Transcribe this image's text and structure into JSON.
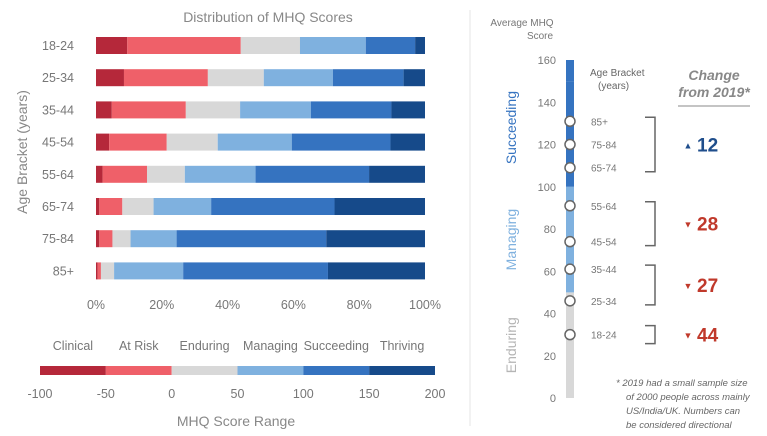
{
  "left_chart": {
    "title": "Distribution of MHQ Scores",
    "ylabel": "Age Bracket (years)",
    "x_ticks": [
      "0%",
      "20%",
      "40%",
      "60%",
      "80%",
      "100%"
    ]
  },
  "legend": {
    "labels": [
      "Clinical",
      "At Risk",
      "Enduring",
      "Managing",
      "Succeeding",
      "Thriving"
    ],
    "ticks": [
      "-100",
      "-50",
      "0",
      "50",
      "100",
      "150",
      "200"
    ],
    "xlabel": "MHQ Score Range"
  },
  "right_chart": {
    "title_line1": "Average MHQ",
    "title_line2": "Score",
    "y_ticks": [
      "160",
      "140",
      "120",
      "100",
      "80",
      "60",
      "40",
      "20",
      "0"
    ],
    "bracket_header_line1": "Age Bracket",
    "bracket_header_line2": "(years)",
    "change_header_line1": "Change",
    "change_header_line2": "from 2019*",
    "band_labels": [
      "Succeeding",
      "Managing",
      "Enduring"
    ],
    "changes": [
      {
        "arrow": "▲",
        "value": "12"
      },
      {
        "arrow": "▼",
        "value": "28"
      },
      {
        "arrow": "▼",
        "value": "27"
      },
      {
        "arrow": "▼",
        "value": "44"
      }
    ],
    "footnote_lines": [
      "* 2019 had a small sample size",
      "of 2000 people across mainly",
      "US/India/UK.  Numbers can",
      "be considered directional"
    ]
  },
  "colors": {
    "clinical": "#b5283a",
    "at_risk": "#ef6069",
    "enduring": "#d8d8d8",
    "managing": "#7fb1df",
    "succeeding": "#3573c0",
    "thriving": "#164a8a",
    "up_arrow": "#1f4e8c",
    "down_arrow": "#c0392b"
  },
  "chart_data": [
    {
      "type": "bar",
      "orientation": "horizontal",
      "stacked": true,
      "title": "Distribution of MHQ Scores",
      "ylabel": "Age Bracket (years)",
      "categories": [
        "18-24",
        "25-34",
        "35-44",
        "45-54",
        "55-64",
        "65-74",
        "75-84",
        "85+"
      ],
      "xlim": [
        0,
        100
      ],
      "x_unit": "%",
      "series": [
        {
          "name": "Clinical",
          "values": [
            9.5,
            8.5,
            4.8,
            4.0,
            2.0,
            1.0,
            1.0,
            0.5
          ]
        },
        {
          "name": "At Risk",
          "values": [
            34.5,
            25.5,
            22.5,
            17.5,
            13.5,
            7.0,
            4.0,
            1.0
          ]
        },
        {
          "name": "Enduring",
          "values": [
            18.0,
            17.0,
            16.5,
            15.5,
            11.5,
            9.5,
            5.5,
            4.0
          ]
        },
        {
          "name": "Managing",
          "values": [
            20.0,
            21.0,
            21.5,
            22.5,
            21.5,
            17.5,
            14.0,
            21.0
          ]
        },
        {
          "name": "Succeeding",
          "values": [
            15.0,
            21.5,
            24.5,
            30.0,
            34.5,
            37.5,
            45.5,
            44.0
          ]
        },
        {
          "name": "Thriving",
          "values": [
            3.0,
            6.5,
            10.2,
            10.5,
            17.0,
            27.5,
            30.0,
            29.5
          ]
        }
      ]
    },
    {
      "type": "scatter",
      "title": "Average MHQ Score",
      "ylim": [
        0,
        160
      ],
      "y_ticks": [
        0,
        20,
        40,
        60,
        80,
        100,
        120,
        140,
        160
      ],
      "bands": [
        {
          "name": "Enduring",
          "range": [
            0,
            50
          ]
        },
        {
          "name": "Managing",
          "range": [
            50,
            100
          ]
        },
        {
          "name": "Succeeding",
          "range": [
            100,
            150
          ]
        }
      ],
      "points": [
        {
          "label": "85+",
          "value": 131
        },
        {
          "label": "75-84",
          "value": 120
        },
        {
          "label": "65-74",
          "value": 109
        },
        {
          "label": "55-64",
          "value": 91
        },
        {
          "label": "45-54",
          "value": 74
        },
        {
          "label": "35-44",
          "value": 61
        },
        {
          "label": "25-34",
          "value": 46
        },
        {
          "label": "18-24",
          "value": 30
        }
      ],
      "change_groups": [
        {
          "labels": [
            "85+",
            "75-84",
            "65-74"
          ],
          "change": 12
        },
        {
          "labels": [
            "55-64",
            "45-54"
          ],
          "change": -28
        },
        {
          "labels": [
            "35-44",
            "25-34"
          ],
          "change": -27
        },
        {
          "labels": [
            "18-24"
          ],
          "change": -44
        }
      ]
    }
  ]
}
